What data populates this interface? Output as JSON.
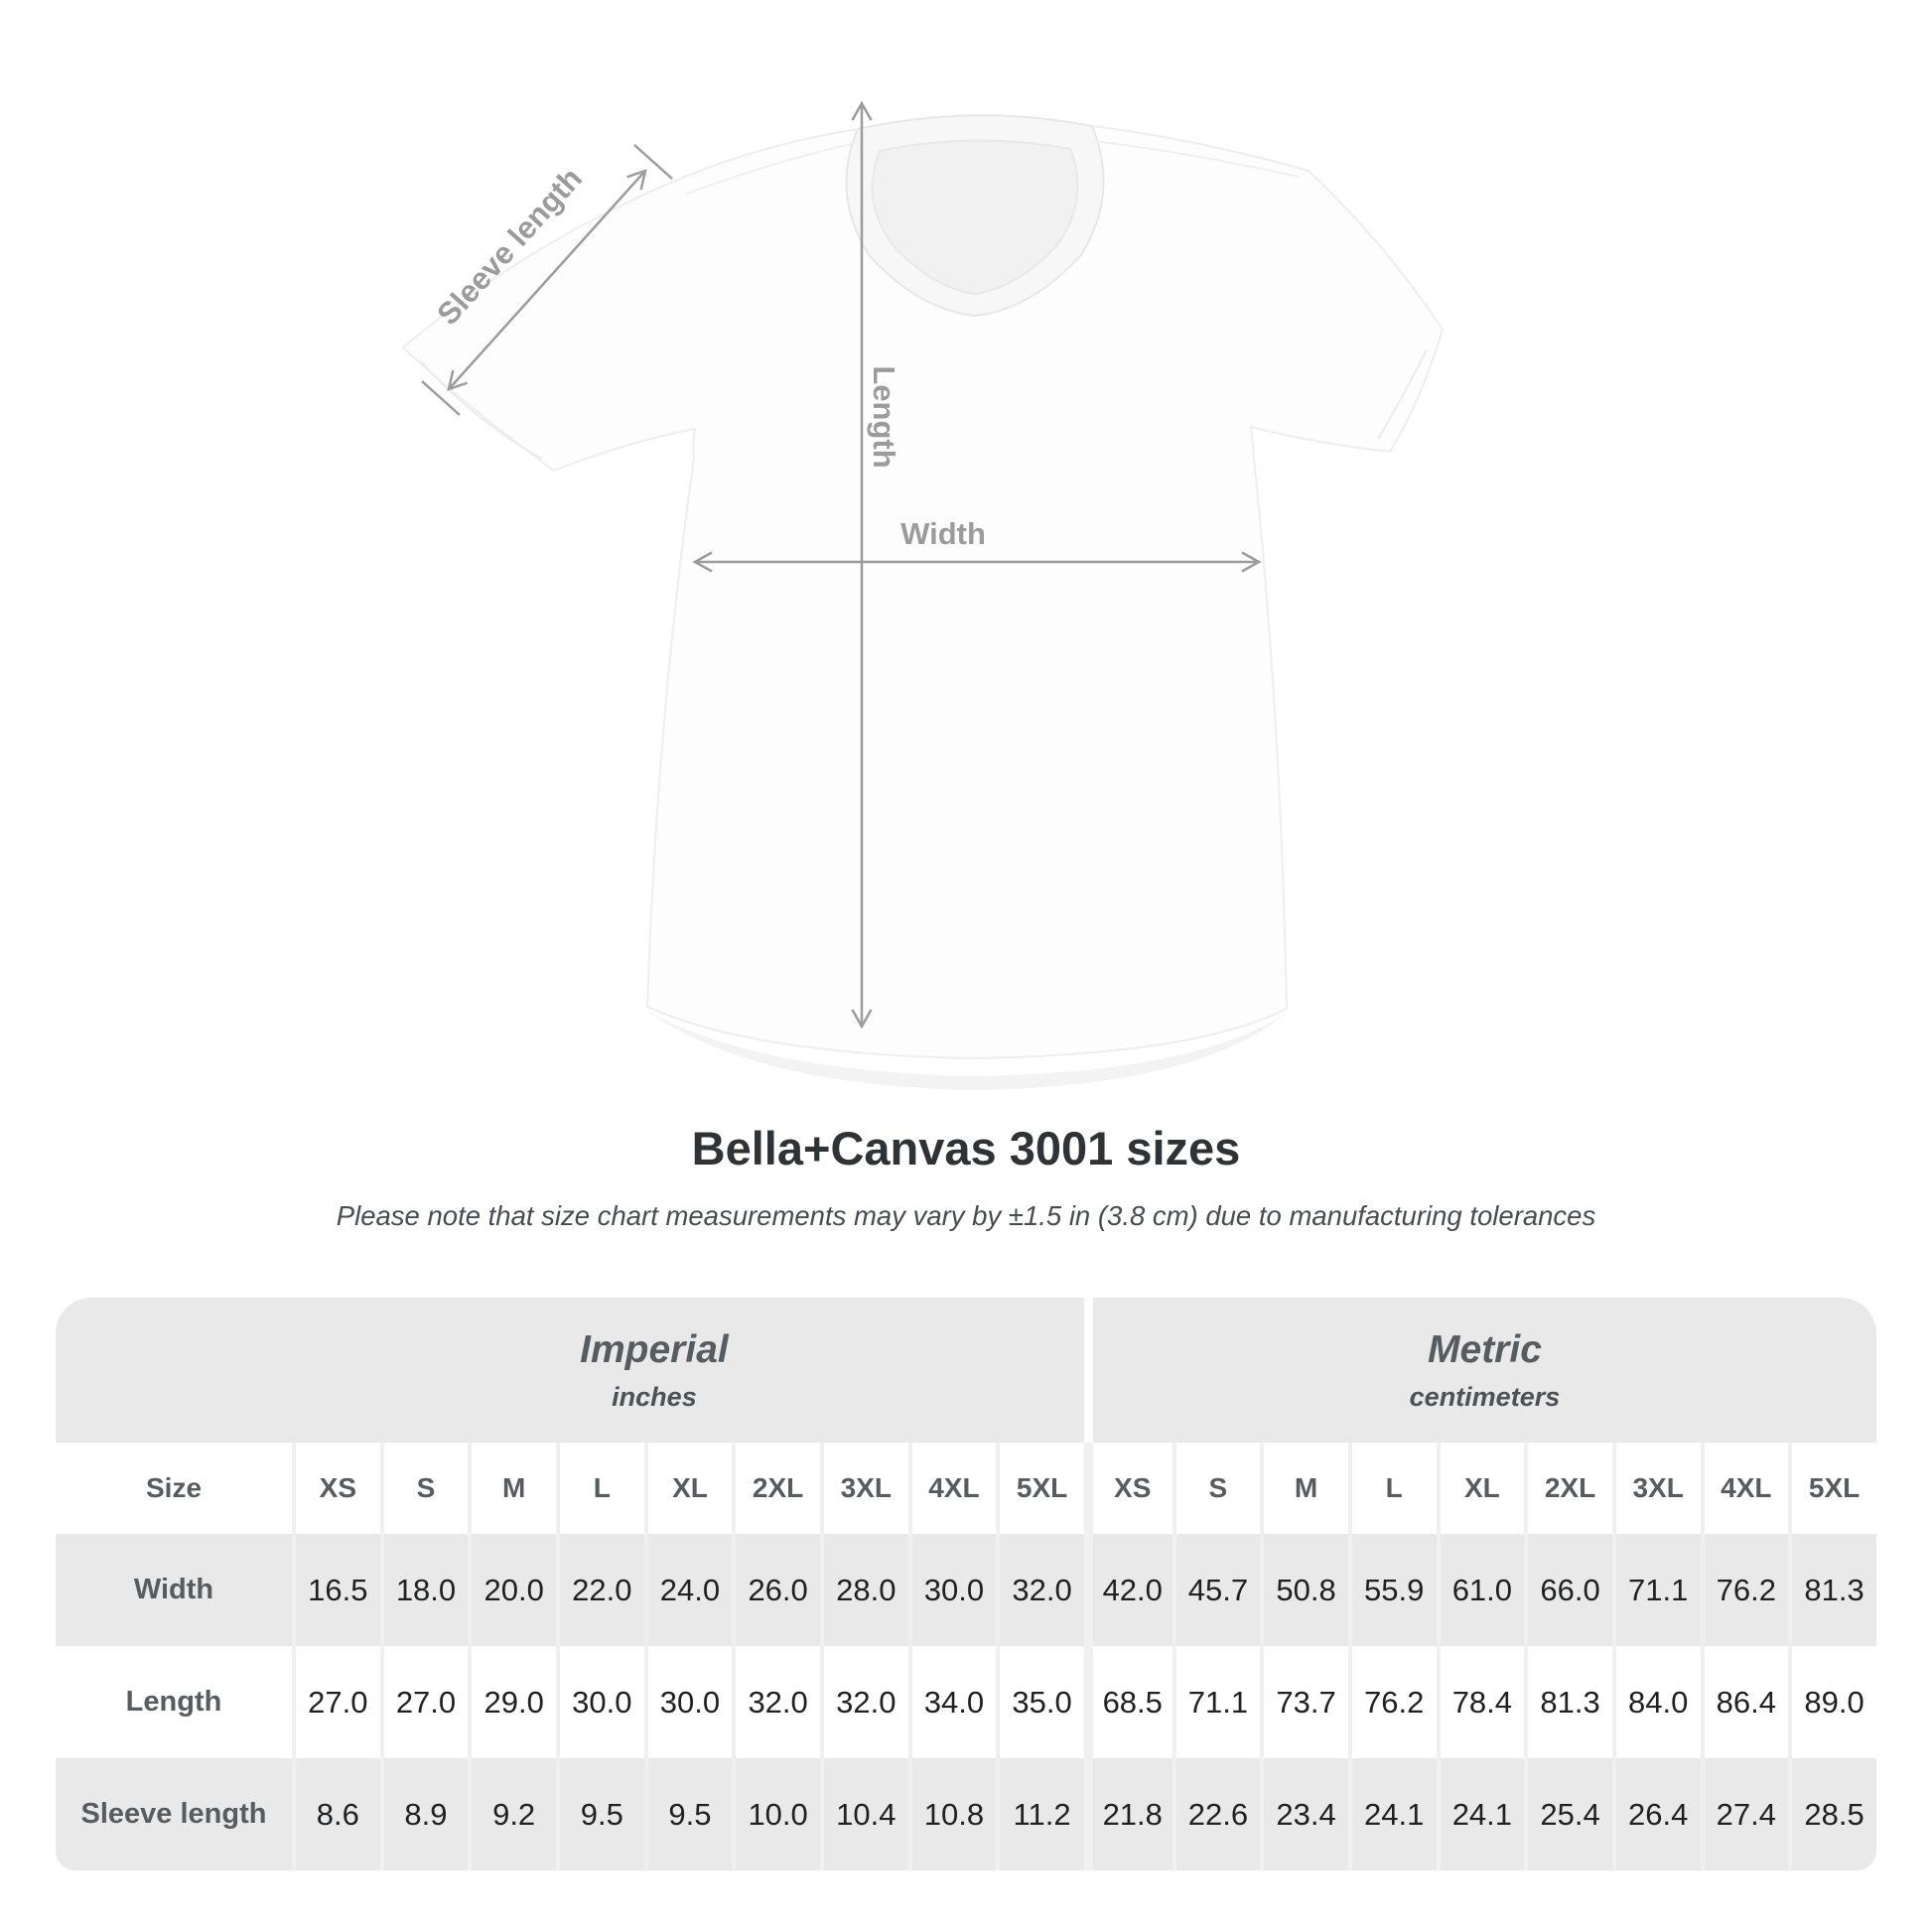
{
  "diagram": {
    "labels": {
      "sleeve_length": "Sleeve length",
      "length": "Length",
      "width": "Width"
    }
  },
  "title": "Bella+Canvas 3001 sizes",
  "subtitle": "Please note that size chart measurements may vary by ±1.5 in (3.8 cm) due to manufacturing tolerances",
  "table": {
    "size_label": "Size",
    "unit_groups": [
      {
        "name": "Imperial",
        "unit": "inches"
      },
      {
        "name": "Metric",
        "unit": "centimeters"
      }
    ],
    "sizes": [
      "XS",
      "S",
      "M",
      "L",
      "XL",
      "2XL",
      "3XL",
      "4XL",
      "5XL"
    ],
    "rows": [
      {
        "label": "Width",
        "imperial": [
          "16.5",
          "18.0",
          "20.0",
          "22.0",
          "24.0",
          "26.0",
          "28.0",
          "30.0",
          "32.0"
        ],
        "metric": [
          "42.0",
          "45.7",
          "50.8",
          "55.9",
          "61.0",
          "66.0",
          "71.1",
          "76.2",
          "81.3"
        ]
      },
      {
        "label": "Length",
        "imperial": [
          "27.0",
          "27.0",
          "29.0",
          "30.0",
          "30.0",
          "32.0",
          "32.0",
          "34.0",
          "35.0"
        ],
        "metric": [
          "68.5",
          "71.1",
          "73.7",
          "76.2",
          "78.4",
          "81.3",
          "84.0",
          "86.4",
          "89.0"
        ]
      },
      {
        "label": "Sleeve length",
        "imperial": [
          "8.6",
          "8.9",
          "9.2",
          "9.5",
          "9.5",
          "10.0",
          "10.4",
          "10.8",
          "11.2"
        ],
        "metric": [
          "21.8",
          "22.6",
          "23.4",
          "24.1",
          "24.1",
          "25.4",
          "26.4",
          "27.4",
          "28.5"
        ]
      }
    ]
  },
  "chart_data": {
    "type": "table",
    "title": "Bella+Canvas 3001 sizes",
    "note": "Please note that size chart measurements may vary by ±1.5 in (3.8 cm) due to manufacturing tolerances",
    "unit_groups": [
      {
        "name": "Imperial",
        "unit": "inches"
      },
      {
        "name": "Metric",
        "unit": "centimeters"
      }
    ],
    "sizes": [
      "XS",
      "S",
      "M",
      "L",
      "XL",
      "2XL",
      "3XL",
      "4XL",
      "5XL"
    ],
    "measurements": [
      {
        "label": "Width",
        "imperial_in": [
          16.5,
          18.0,
          20.0,
          22.0,
          24.0,
          26.0,
          28.0,
          30.0,
          32.0
        ],
        "metric_cm": [
          42.0,
          45.7,
          50.8,
          55.9,
          61.0,
          66.0,
          71.1,
          76.2,
          81.3
        ]
      },
      {
        "label": "Length",
        "imperial_in": [
          27.0,
          27.0,
          29.0,
          30.0,
          30.0,
          32.0,
          32.0,
          34.0,
          35.0
        ],
        "metric_cm": [
          68.5,
          71.1,
          73.7,
          76.2,
          78.4,
          81.3,
          84.0,
          86.4,
          89.0
        ]
      },
      {
        "label": "Sleeve length",
        "imperial_in": [
          8.6,
          8.9,
          9.2,
          9.5,
          9.5,
          10.0,
          10.4,
          10.8,
          11.2
        ],
        "metric_cm": [
          21.8,
          22.6,
          23.4,
          24.1,
          24.1,
          25.4,
          26.4,
          27.4,
          28.5
        ]
      }
    ]
  },
  "colors": {
    "row_gray": "#e9e9e9",
    "separator": "#f0f0f0",
    "value_text": "#1e2022",
    "header_text": "#565c60",
    "arrow_gray": "#9c9c9c",
    "title_text": "#2f3335"
  }
}
